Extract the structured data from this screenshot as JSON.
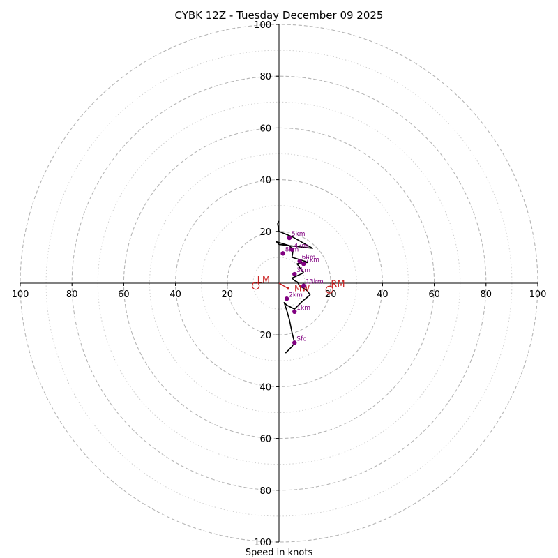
{
  "chart_data": {
    "type": "hodograph",
    "title": "CYBK 12Z - Tuesday December 09 2025",
    "xlabel": "Speed in knots",
    "units": "knots",
    "range": [
      -100,
      100
    ],
    "x_ticks": [
      {
        "v": -100,
        "label": "100"
      },
      {
        "v": -80,
        "label": "80"
      },
      {
        "v": -60,
        "label": "60"
      },
      {
        "v": -40,
        "label": "40"
      },
      {
        "v": -20,
        "label": "20"
      },
      {
        "v": 20,
        "label": "20"
      },
      {
        "v": 40,
        "label": "40"
      },
      {
        "v": 60,
        "label": "60"
      },
      {
        "v": 80,
        "label": "80"
      },
      {
        "v": 100,
        "label": "100"
      }
    ],
    "y_ticks": [
      {
        "v": 100,
        "label": "100"
      },
      {
        "v": 80,
        "label": "80"
      },
      {
        "v": 60,
        "label": "60"
      },
      {
        "v": 40,
        "label": "40"
      },
      {
        "v": 20,
        "label": "20"
      },
      {
        "v": -20,
        "label": "20"
      },
      {
        "v": -40,
        "label": "40"
      },
      {
        "v": -60,
        "label": "60"
      },
      {
        "v": -80,
        "label": "80"
      },
      {
        "v": -100,
        "label": "100"
      }
    ],
    "major_rings": [
      20,
      40,
      60,
      80,
      100
    ],
    "minor_rings": [
      10,
      30,
      50,
      70,
      90
    ],
    "trace": [
      [
        2.5,
        -27
      ],
      [
        5,
        -24.5
      ],
      [
        6,
        -23
      ],
      [
        5,
        -19
      ],
      [
        4,
        -14
      ],
      [
        3,
        -10.5
      ],
      [
        2,
        -7.5
      ],
      [
        3,
        -8.5
      ],
      [
        6,
        -10
      ],
      [
        9,
        -7
      ],
      [
        12,
        -4.5
      ],
      [
        11,
        -3
      ],
      [
        8,
        -1
      ],
      [
        7,
        0.5
      ],
      [
        6,
        1
      ],
      [
        5,
        2
      ],
      [
        9.5,
        4
      ],
      [
        8,
        6
      ],
      [
        7,
        7.5
      ],
      [
        9,
        8
      ],
      [
        11,
        8
      ],
      [
        10,
        8.5
      ],
      [
        5,
        10
      ],
      [
        5.5,
        13
      ],
      [
        4,
        14.5
      ],
      [
        0,
        15
      ],
      [
        -1,
        16
      ],
      [
        4,
        14.5
      ],
      [
        13,
        13.5
      ],
      [
        5,
        18
      ],
      [
        0,
        20
      ],
      [
        -0.5,
        23
      ],
      [
        0,
        24
      ]
    ],
    "height_markers": [
      {
        "label": "Sfc",
        "u": 6,
        "v": -23
      },
      {
        "label": "1km",
        "u": 6,
        "v": -11
      },
      {
        "label": "2km",
        "u": 3,
        "v": -6
      },
      {
        "label": "13km",
        "u": 9.5,
        "v": -1
      },
      {
        "label": "3km",
        "u": 6,
        "v": 3.5
      },
      {
        "label": "7km",
        "u": 9.5,
        "v": 7.5
      },
      {
        "label": "6km",
        "u": 8,
        "v": 8.5
      },
      {
        "label": "8km",
        "u": 1.5,
        "v": 11.5
      },
      {
        "label": "4km",
        "u": 5,
        "v": 13
      },
      {
        "label": "5km",
        "u": 4,
        "v": 17.5
      }
    ],
    "storm_motion": [
      {
        "label": "LM",
        "u": -9,
        "v": -1
      },
      {
        "label": "RM",
        "u": 19.5,
        "v": -2.5
      }
    ],
    "mean_wind_label": "MW",
    "mean_wind_vector": {
      "from": [
        0,
        0
      ],
      "to": [
        3.5,
        -2
      ]
    },
    "colors": {
      "trace": "#000000",
      "markers": "#800080",
      "storm": "#cc2222",
      "ring": "#b5b5b5",
      "axis": "#000000"
    }
  }
}
